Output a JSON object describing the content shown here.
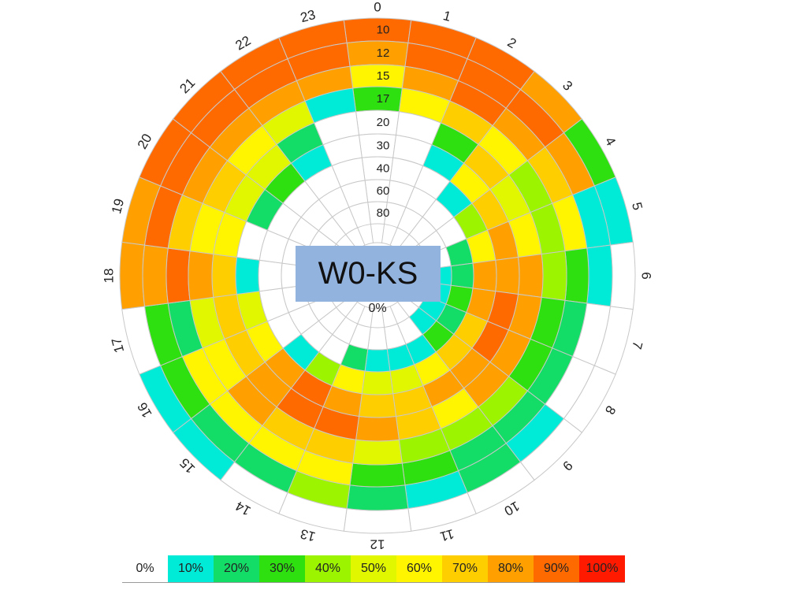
{
  "title": "W0-KS",
  "chart_data": {
    "type": "heatmap",
    "layout": "polar",
    "hours": [
      "0",
      "1",
      "2",
      "3",
      "4",
      "5",
      "6",
      "7",
      "8",
      "9",
      "10",
      "11",
      "12",
      "13",
      "14",
      "15",
      "16",
      "17",
      "18",
      "19",
      "20",
      "21",
      "22",
      "23"
    ],
    "rings": [
      "10",
      "12",
      "15",
      "17",
      "20",
      "30",
      "40",
      "60",
      "80"
    ],
    "center_label": "0%",
    "values": [
      [
        90,
        90,
        90,
        80,
        30,
        10,
        0,
        0,
        0,
        0,
        0,
        0,
        0,
        0,
        0,
        10,
        10,
        0,
        80,
        80,
        90,
        90,
        90,
        90
      ],
      [
        80,
        90,
        90,
        90,
        80,
        10,
        10,
        0,
        0,
        10,
        20,
        10,
        20,
        40,
        20,
        20,
        30,
        30,
        80,
        90,
        90,
        90,
        90,
        90
      ],
      [
        60,
        80,
        90,
        80,
        70,
        60,
        30,
        20,
        20,
        20,
        20,
        30,
        30,
        60,
        60,
        60,
        60,
        20,
        90,
        70,
        80,
        80,
        80,
        80
      ],
      [
        30,
        60,
        70,
        60,
        40,
        40,
        40,
        30,
        30,
        40,
        40,
        40,
        50,
        70,
        70,
        80,
        60,
        50,
        80,
        60,
        70,
        60,
        50,
        10
      ],
      [
        0,
        0,
        30,
        70,
        50,
        60,
        80,
        80,
        80,
        80,
        60,
        70,
        80,
        90,
        90,
        80,
        70,
        70,
        70,
        60,
        50,
        50,
        20,
        0
      ],
      [
        0,
        0,
        10,
        60,
        70,
        80,
        80,
        90,
        90,
        80,
        80,
        70,
        70,
        80,
        90,
        80,
        60,
        50,
        10,
        0,
        20,
        30,
        10,
        0
      ],
      [
        0,
        0,
        0,
        10,
        40,
        60,
        80,
        80,
        70,
        70,
        60,
        50,
        50,
        60,
        40,
        10,
        0,
        0,
        0,
        0,
        0,
        0,
        0,
        0
      ],
      [
        0,
        0,
        0,
        0,
        0,
        20,
        20,
        30,
        20,
        30,
        10,
        10,
        10,
        20,
        0,
        0,
        0,
        0,
        0,
        0,
        0,
        0,
        0,
        0
      ],
      [
        0,
        0,
        0,
        0,
        0,
        0,
        10,
        10,
        10,
        10,
        0,
        0,
        0,
        0,
        0,
        0,
        0,
        0,
        0,
        0,
        0,
        0,
        0,
        0
      ]
    ],
    "legend": [
      "0%",
      "10%",
      "20%",
      "30%",
      "40%",
      "50%",
      "60%",
      "70%",
      "80%",
      "90%",
      "100%"
    ],
    "colors": {
      "0": "#ffffff",
      "5": "#ccf7f7",
      "10": "#00ead8",
      "20": "#13dc67",
      "30": "#2ee00f",
      "40": "#9cf400",
      "50": "#e0f700",
      "60": "#fff500",
      "70": "#ffce00",
      "80": "#ffa000",
      "90": "#ff6a00",
      "100": "#ff1a00"
    },
    "grid_color": "#c8c8c8"
  }
}
